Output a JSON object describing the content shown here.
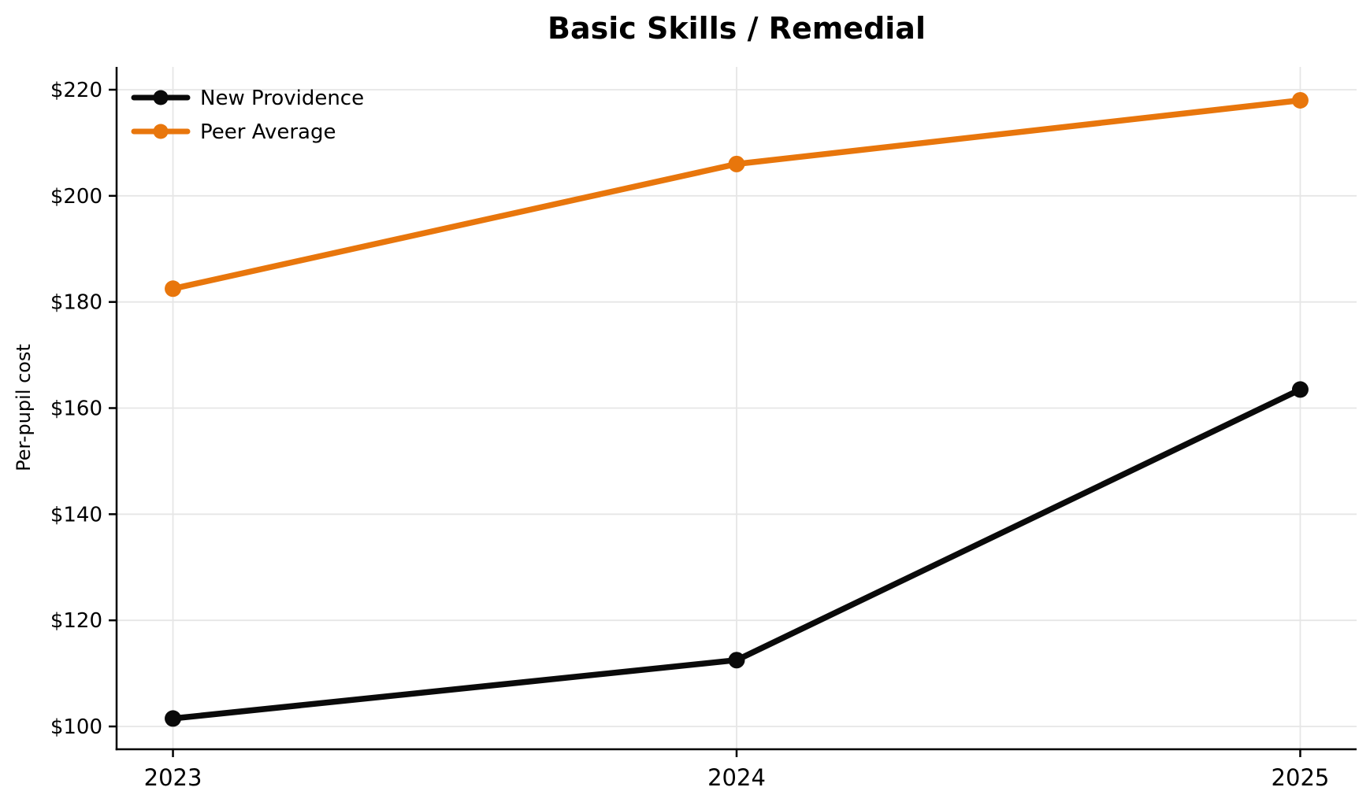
{
  "chart_data": {
    "type": "line",
    "title": "Basic Skills / Remedial",
    "xlabel": "",
    "ylabel": "Per-pupil cost",
    "x": [
      2023,
      2024,
      2025
    ],
    "x_tick_labels": [
      "2023",
      "2024",
      "2025"
    ],
    "series": [
      {
        "name": "New Providence",
        "color": "#0a0a0a",
        "values": [
          101.5,
          112.5,
          163.5
        ]
      },
      {
        "name": "Peer Average",
        "color": "#e8760c",
        "values": [
          182.5,
          206.0,
          218.0
        ]
      }
    ],
    "y_ticks": [
      100,
      120,
      140,
      160,
      180,
      200,
      220
    ],
    "y_tick_prefix": "$",
    "y_tick_labels": [
      "$100",
      "$120",
      "$140",
      "$160",
      "$180",
      "$200",
      "$220"
    ],
    "ylim": [
      95.7,
      224.3
    ],
    "xlim": [
      2022.9,
      2025.1
    ],
    "grid": true,
    "legend_position": "upper left",
    "marker": "circle"
  },
  "colors": {
    "background": "#ffffff",
    "grid": "#e6e6e6",
    "axis": "#000000",
    "text": "#000000"
  }
}
